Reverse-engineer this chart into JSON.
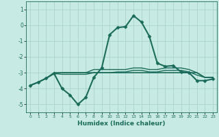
{
  "xlabel": "Humidex (Indice chaleur)",
  "xlim": [
    -0.5,
    23.5
  ],
  "ylim": [
    -5.5,
    1.5
  ],
  "yticks": [
    1,
    0,
    -1,
    -2,
    -3,
    -4,
    -5
  ],
  "xticks": [
    0,
    1,
    2,
    3,
    4,
    5,
    6,
    7,
    8,
    9,
    10,
    11,
    12,
    13,
    14,
    15,
    16,
    17,
    18,
    19,
    20,
    21,
    22,
    23
  ],
  "bg_color": "#c8eae4",
  "grid_color": "#a8d4cc",
  "line_color": "#1a6b5a",
  "lines": [
    {
      "x": [
        0,
        1,
        2,
        3,
        4,
        5,
        6,
        7,
        8,
        9,
        10,
        11,
        12,
        13,
        14,
        15,
        16,
        17,
        18,
        19,
        20,
        21,
        22,
        23
      ],
      "y": [
        -3.8,
        -3.6,
        -3.35,
        -3.0,
        -3.0,
        -3.0,
        -3.0,
        -3.0,
        -3.0,
        -3.0,
        -3.0,
        -3.0,
        -3.0,
        -3.0,
        -3.0,
        -3.0,
        -3.0,
        -3.0,
        -3.0,
        -3.0,
        -3.0,
        -3.0,
        -3.3,
        -3.3
      ],
      "marker": false,
      "lw": 1.2
    },
    {
      "x": [
        0,
        1,
        2,
        3,
        4,
        5,
        6,
        7,
        8,
        9,
        10,
        11,
        12,
        13,
        14,
        15,
        16,
        17,
        18,
        19,
        20,
        21,
        22,
        23
      ],
      "y": [
        -3.8,
        -3.6,
        -3.35,
        -3.05,
        -3.0,
        -3.0,
        -3.0,
        -3.0,
        -2.8,
        -2.8,
        -2.8,
        -2.8,
        -2.8,
        -2.7,
        -2.7,
        -2.8,
        -2.8,
        -2.7,
        -2.7,
        -2.7,
        -2.8,
        -3.0,
        -3.3,
        -3.3
      ],
      "marker": false,
      "lw": 1.0
    },
    {
      "x": [
        0,
        1,
        2,
        3,
        4,
        5,
        6,
        7,
        8,
        9,
        10,
        11,
        12,
        13,
        14,
        15,
        16,
        17,
        18,
        19,
        20,
        21,
        22,
        23
      ],
      "y": [
        -3.8,
        -3.6,
        -3.35,
        -3.05,
        -3.1,
        -3.1,
        -3.1,
        -3.1,
        -3.0,
        -3.0,
        -3.0,
        -2.95,
        -2.95,
        -2.85,
        -2.85,
        -2.95,
        -2.95,
        -2.85,
        -2.85,
        -2.85,
        -2.95,
        -3.15,
        -3.3,
        -3.3
      ],
      "marker": false,
      "lw": 1.0
    },
    {
      "x": [
        0,
        1,
        2,
        3,
        4,
        5,
        6,
        7,
        8,
        9,
        10,
        11,
        12,
        13,
        14,
        15,
        16,
        17,
        18,
        19,
        20,
        21,
        22,
        23
      ],
      "y": [
        -3.8,
        -3.6,
        -3.35,
        -3.05,
        -4.0,
        -4.4,
        -5.0,
        -4.55,
        -3.3,
        -2.7,
        -0.6,
        -0.15,
        -0.1,
        0.6,
        0.2,
        -0.7,
        -2.4,
        -2.6,
        -2.55,
        -2.95,
        -3.0,
        -3.5,
        -3.5,
        -3.4
      ],
      "marker": true,
      "lw": 1.5
    }
  ]
}
